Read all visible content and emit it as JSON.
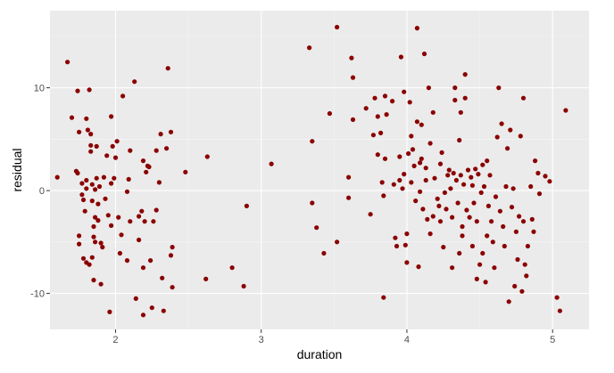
{
  "chart_data": {
    "type": "scatter",
    "xlabel": "duration",
    "ylabel": "residual",
    "xlim": [
      1.55,
      5.25
    ],
    "ylim": [
      -13.5,
      17.5
    ],
    "x_ticks": [
      2,
      3,
      4,
      5
    ],
    "y_ticks": [
      -10,
      0,
      10
    ],
    "x_tick_labels": [
      "2",
      "3",
      "4",
      "5"
    ],
    "y_tick_labels": [
      "-10",
      "0",
      "10"
    ],
    "grid": true,
    "colors": {
      "panel": "#ebebeb",
      "grid_major": "#ffffff",
      "point": "#8b0000"
    },
    "series": [
      {
        "points": [
          [
            1.6,
            1.3
          ],
          [
            1.67,
            12.5
          ],
          [
            1.7,
            7.1
          ],
          [
            1.73,
            1.9
          ],
          [
            1.74,
            9.7
          ],
          [
            1.74,
            1.7
          ],
          [
            1.75,
            5.7
          ],
          [
            1.75,
            -4.4
          ],
          [
            1.75,
            -5.2
          ],
          [
            1.77,
            -0.4
          ],
          [
            1.77,
            0.7
          ],
          [
            1.78,
            -0.9
          ],
          [
            1.78,
            -6.6
          ],
          [
            1.79,
            -2.0
          ],
          [
            1.8,
            7.0
          ],
          [
            1.8,
            0.2
          ],
          [
            1.8,
            1.0
          ],
          [
            1.8,
            -7.0
          ],
          [
            1.81,
            5.9
          ],
          [
            1.82,
            9.8
          ],
          [
            1.82,
            -7.2
          ],
          [
            1.83,
            5.5
          ],
          [
            1.83,
            4.4
          ],
          [
            1.83,
            3.8
          ],
          [
            1.84,
            0.6
          ],
          [
            1.84,
            -1.0
          ],
          [
            1.84,
            -6.5
          ],
          [
            1.85,
            -3.5
          ],
          [
            1.85,
            -4.5
          ],
          [
            1.85,
            -8.7
          ],
          [
            1.86,
            -2.6
          ],
          [
            1.86,
            -5.0
          ],
          [
            1.86,
            0.1
          ],
          [
            1.87,
            1.2
          ],
          [
            1.87,
            4.3
          ],
          [
            1.88,
            -1.3
          ],
          [
            1.88,
            -2.9
          ],
          [
            1.89,
            0.4
          ],
          [
            1.9,
            -5.1
          ],
          [
            1.9,
            -9.1
          ],
          [
            1.91,
            -5.5
          ],
          [
            1.92,
            1.3
          ],
          [
            1.93,
            -0.8
          ],
          [
            1.94,
            3.4
          ],
          [
            1.95,
            -2.4
          ],
          [
            1.96,
            -11.8
          ],
          [
            1.97,
            0.7
          ],
          [
            1.97,
            7.2
          ],
          [
            1.97,
            -3.4
          ],
          [
            1.98,
            4.3
          ],
          [
            1.99,
            1.2
          ],
          [
            2.0,
            3.2
          ],
          [
            2.01,
            4.8
          ],
          [
            2.02,
            -2.6
          ],
          [
            2.03,
            -6.1
          ],
          [
            2.04,
            -4.3
          ],
          [
            2.05,
            9.2
          ],
          [
            2.08,
            -0.1
          ],
          [
            2.08,
            -6.8
          ],
          [
            2.09,
            1.1
          ],
          [
            2.1,
            -3.0
          ],
          [
            2.1,
            3.9
          ],
          [
            2.13,
            10.6
          ],
          [
            2.14,
            -10.5
          ],
          [
            2.16,
            -2.5
          ],
          [
            2.16,
            -4.8
          ],
          [
            2.18,
            -2.0
          ],
          [
            2.19,
            2.9
          ],
          [
            2.19,
            -7.5
          ],
          [
            2.19,
            -12.1
          ],
          [
            2.2,
            -3.0
          ],
          [
            2.21,
            1.8
          ],
          [
            2.22,
            2.4
          ],
          [
            2.23,
            2.3
          ],
          [
            2.24,
            -6.8
          ],
          [
            2.25,
            -11.4
          ],
          [
            2.26,
            -3.0
          ],
          [
            2.28,
            3.9
          ],
          [
            2.28,
            -1.9
          ],
          [
            2.3,
            0.8
          ],
          [
            2.31,
            5.5
          ],
          [
            2.32,
            -8.5
          ],
          [
            2.33,
            -11.7
          ],
          [
            2.35,
            4.1
          ],
          [
            2.36,
            11.9
          ],
          [
            2.38,
            5.7
          ],
          [
            2.38,
            -6.3
          ],
          [
            2.39,
            -9.4
          ],
          [
            2.39,
            -5.5
          ],
          [
            2.48,
            1.8
          ],
          [
            2.62,
            -8.6
          ],
          [
            2.63,
            3.3
          ],
          [
            2.8,
            -7.5
          ],
          [
            2.88,
            -9.3
          ],
          [
            2.9,
            -1.5
          ],
          [
            3.07,
            2.6
          ],
          [
            3.33,
            13.9
          ],
          [
            3.35,
            4.8
          ],
          [
            3.35,
            -1.2
          ],
          [
            3.38,
            -3.6
          ],
          [
            3.43,
            -6.1
          ],
          [
            3.47,
            7.5
          ],
          [
            3.52,
            15.9
          ],
          [
            3.52,
            -5.0
          ],
          [
            3.6,
            -0.7
          ],
          [
            3.6,
            1.3
          ],
          [
            3.62,
            12.9
          ],
          [
            3.63,
            11.0
          ],
          [
            3.63,
            6.9
          ],
          [
            3.72,
            8.0
          ],
          [
            3.75,
            -2.3
          ],
          [
            3.77,
            5.4
          ],
          [
            3.78,
            9.0
          ],
          [
            3.8,
            3.5
          ],
          [
            3.8,
            7.2
          ],
          [
            3.82,
            5.6
          ],
          [
            3.83,
            0.8
          ],
          [
            3.84,
            -0.5
          ],
          [
            3.84,
            -10.4
          ],
          [
            3.85,
            9.2
          ],
          [
            3.85,
            3.1
          ],
          [
            3.86,
            7.4
          ],
          [
            3.9,
            8.7
          ],
          [
            3.91,
            0.6
          ],
          [
            3.92,
            -4.6
          ],
          [
            3.93,
            -5.4
          ],
          [
            3.95,
            1.0
          ],
          [
            3.95,
            3.3
          ],
          [
            3.96,
            13.0
          ],
          [
            3.97,
            0.2
          ],
          [
            3.98,
            9.6
          ],
          [
            3.98,
            1.6
          ],
          [
            3.99,
            -5.3
          ],
          [
            4.0,
            -7.0
          ],
          [
            4.0,
            -4.2
          ],
          [
            4.01,
            3.6
          ],
          [
            4.02,
            8.6
          ],
          [
            4.03,
            5.3
          ],
          [
            4.03,
            0.8
          ],
          [
            4.04,
            4.0
          ],
          [
            4.05,
            2.4
          ],
          [
            4.06,
            -1.0
          ],
          [
            4.07,
            6.7
          ],
          [
            4.07,
            15.8
          ],
          [
            4.08,
            -7.4
          ],
          [
            4.09,
            2.7
          ],
          [
            4.09,
            -0.1
          ],
          [
            4.1,
            3.1
          ],
          [
            4.1,
            6.4
          ],
          [
            4.11,
            -1.8
          ],
          [
            4.12,
            13.3
          ],
          [
            4.13,
            1.0
          ],
          [
            4.13,
            2.2
          ],
          [
            4.14,
            -2.8
          ],
          [
            4.15,
            10.0
          ],
          [
            4.16,
            4.6
          ],
          [
            4.16,
            -4.2
          ],
          [
            4.18,
            7.6
          ],
          [
            4.18,
            -2.5
          ],
          [
            4.19,
            1.2
          ],
          [
            4.21,
            -0.8
          ],
          [
            4.22,
            -1.5
          ],
          [
            4.23,
            2.6
          ],
          [
            4.23,
            -3.0
          ],
          [
            4.24,
            3.7
          ],
          [
            4.25,
            -5.5
          ],
          [
            4.26,
            -0.2
          ],
          [
            4.27,
            -1.8
          ],
          [
            4.28,
            1.5
          ],
          [
            4.29,
            2.0
          ],
          [
            4.3,
            0.2
          ],
          [
            4.31,
            -2.6
          ],
          [
            4.31,
            -7.5
          ],
          [
            4.32,
            1.7
          ],
          [
            4.33,
            10.0
          ],
          [
            4.33,
            8.8
          ],
          [
            4.34,
            1.0
          ],
          [
            4.35,
            -1.2
          ],
          [
            4.36,
            4.9
          ],
          [
            4.36,
            -6.1
          ],
          [
            4.37,
            1.5
          ],
          [
            4.37,
            7.6
          ],
          [
            4.38,
            -4.4
          ],
          [
            4.38,
            -3.5
          ],
          [
            4.39,
            0.6
          ],
          [
            4.4,
            11.3
          ],
          [
            4.4,
            9.0
          ],
          [
            4.41,
            -1.9
          ],
          [
            4.42,
            2.0
          ],
          [
            4.43,
            -2.6
          ],
          [
            4.44,
            1.3
          ],
          [
            4.45,
            0.5
          ],
          [
            4.45,
            -5.4
          ],
          [
            4.46,
            -1.2
          ],
          [
            4.47,
            2.1
          ],
          [
            4.48,
            -3.0
          ],
          [
            4.48,
            -8.6
          ],
          [
            4.49,
            1.6
          ],
          [
            4.5,
            -7.2
          ],
          [
            4.51,
            -0.2
          ],
          [
            4.52,
            2.5
          ],
          [
            4.52,
            -6.1
          ],
          [
            4.53,
            0.4
          ],
          [
            4.54,
            -8.9
          ],
          [
            4.55,
            -4.4
          ],
          [
            4.55,
            2.9
          ],
          [
            4.56,
            -1.5
          ],
          [
            4.57,
            1.5
          ],
          [
            4.58,
            -3.0
          ],
          [
            4.59,
            -5.0
          ],
          [
            4.6,
            -7.5
          ],
          [
            4.61,
            -0.6
          ],
          [
            4.62,
            5.2
          ],
          [
            4.63,
            10.0
          ],
          [
            4.64,
            -2.0
          ],
          [
            4.65,
            6.5
          ],
          [
            4.66,
            -3.5
          ],
          [
            4.67,
            -5.4
          ],
          [
            4.68,
            0.4
          ],
          [
            4.69,
            4.1
          ],
          [
            4.7,
            -10.8
          ],
          [
            4.71,
            5.9
          ],
          [
            4.72,
            -1.6
          ],
          [
            4.73,
            0.2
          ],
          [
            4.74,
            -9.3
          ],
          [
            4.75,
            -4.0
          ],
          [
            4.76,
            -6.7
          ],
          [
            4.77,
            -2.5
          ],
          [
            4.78,
            5.3
          ],
          [
            4.79,
            -9.8
          ],
          [
            4.8,
            -3.0
          ],
          [
            4.8,
            9.0
          ],
          [
            4.81,
            -7.2
          ],
          [
            4.82,
            -8.3
          ],
          [
            4.83,
            -5.4
          ],
          [
            4.85,
            0.4
          ],
          [
            4.86,
            -2.8
          ],
          [
            4.87,
            -4.0
          ],
          [
            4.88,
            2.9
          ],
          [
            4.9,
            1.7
          ],
          [
            4.91,
            -0.3
          ],
          [
            4.95,
            1.4
          ],
          [
            4.98,
            0.9
          ],
          [
            5.03,
            -10.4
          ],
          [
            5.05,
            -11.7
          ],
          [
            5.09,
            7.8
          ]
        ]
      }
    ]
  }
}
